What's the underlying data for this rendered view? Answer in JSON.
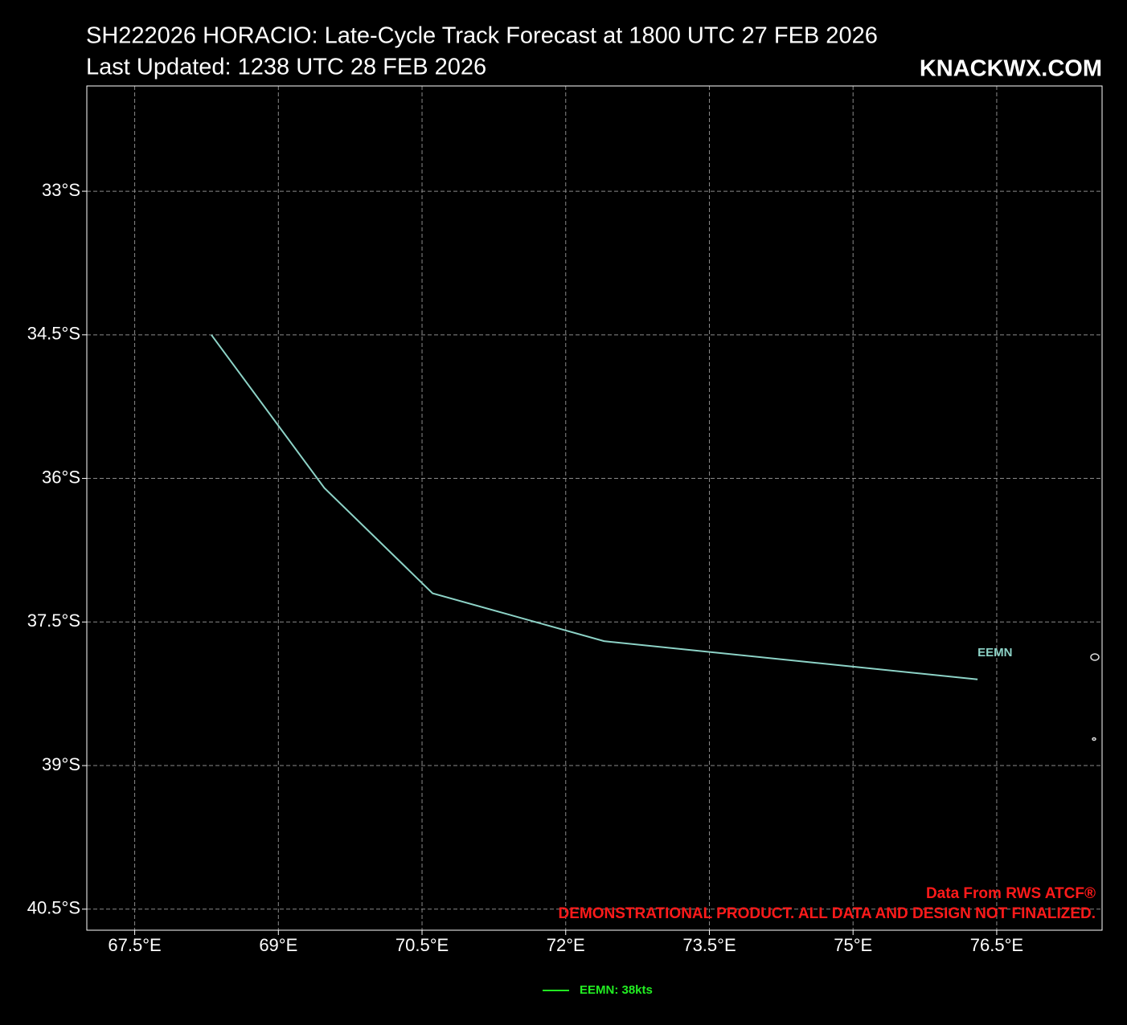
{
  "chart_data": {
    "type": "line",
    "title": "SH222026 HORACIO: Late-Cycle Track Forecast at 1800 UTC 27 FEB 2026",
    "subtitle": "Last Updated: 1238 UTC 28 FEB 2026",
    "brand": "KNACKWX.COM",
    "credit": "Data From RWS ATCF®",
    "disclaimer": "DEMONSTRATIONAL PRODUCT. ALL DATA AND DESIGN NOT FINALIZED.",
    "xlim": [
      67.0,
      77.6
    ],
    "ylim": [
      -40.72,
      -31.9
    ],
    "xticks": [
      {
        "value": 67.5,
        "label": "67.5°E"
      },
      {
        "value": 69,
        "label": "69°E"
      },
      {
        "value": 70.5,
        "label": "70.5°E"
      },
      {
        "value": 72,
        "label": "72°E"
      },
      {
        "value": 73.5,
        "label": "73.5°E"
      },
      {
        "value": 75,
        "label": "75°E"
      },
      {
        "value": 76.5,
        "label": "76.5°E"
      }
    ],
    "yticks": [
      {
        "value": -33,
        "label": "33°S"
      },
      {
        "value": -34.5,
        "label": "34.5°S"
      },
      {
        "value": -36,
        "label": "36°S"
      },
      {
        "value": -37.5,
        "label": "37.5°S"
      },
      {
        "value": -39,
        "label": "39°S"
      },
      {
        "value": -40.5,
        "label": "40.5°S"
      }
    ],
    "grid": true,
    "series": [
      {
        "name": "EEMN",
        "legend_label": "EEMN: 38kts",
        "color": "#8dd3c7",
        "legend_color": "#22ee22",
        "x": [
          68.3,
          69.48,
          70.61,
          72.4,
          76.3
        ],
        "values": [
          -34.5,
          -36.1,
          -37.2,
          -37.7,
          -38.1
        ]
      }
    ]
  }
}
